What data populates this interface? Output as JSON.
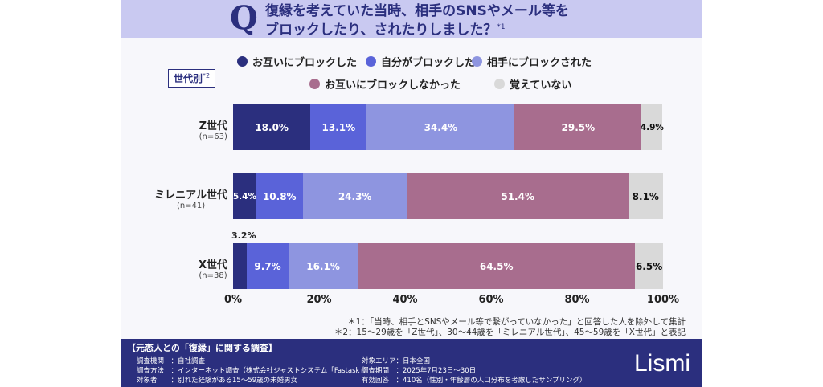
{
  "header": {
    "q": "Q",
    "title_line1": "復縁を考えていた当時、相手のSNSやメール等を",
    "title_line2": "ブロックしたり、されたりしました？",
    "title_note": "*1"
  },
  "group_label": "世代別",
  "group_note": "*2",
  "chart_data": {
    "type": "bar",
    "orientation": "horizontal",
    "stacked": true,
    "categories": [
      {
        "name": "Z世代",
        "n": "(n=63)"
      },
      {
        "name": "ミレニアル世代",
        "n": "(n=41)"
      },
      {
        "name": "X世代",
        "n": "(n=38)"
      }
    ],
    "series": [
      {
        "name": "お互いにブロックした",
        "color": "#2b2f7e",
        "values": [
          18.0,
          5.4,
          3.2
        ],
        "labels": [
          "18.0%",
          "5.4%",
          "3.2%"
        ]
      },
      {
        "name": "自分がブロックした",
        "color": "#5a63d9",
        "values": [
          13.1,
          10.8,
          9.7
        ],
        "labels": [
          "13.1%",
          "10.8%",
          "9.7%"
        ]
      },
      {
        "name": "相手にブロックされた",
        "color": "#8e95e0",
        "values": [
          34.4,
          24.3,
          16.1
        ],
        "labels": [
          "34.4%",
          "24.3%",
          "16.1%"
        ]
      },
      {
        "name": "お互いにブロックしなかった",
        "color": "#a86d8e",
        "values": [
          29.5,
          51.4,
          64.5
        ],
        "labels": [
          "29.5%",
          "51.4%",
          "64.5%"
        ]
      },
      {
        "name": "覚えていない",
        "color": "#d9d9d9",
        "values": [
          4.9,
          8.1,
          6.5
        ],
        "labels": [
          "4.9%",
          "8.1%",
          "6.5%"
        ]
      }
    ],
    "xlim": [
      0,
      100
    ],
    "xticks": [
      "0%",
      "20%",
      "40%",
      "60%",
      "80%",
      "100%"
    ],
    "legend": "top"
  },
  "notes": [
    "＊1：「当時、相手とSNSやメール等で繋がっていなかった」と回答した人を除外して集計",
    "＊2：15〜29歳を「Z世代」、30〜44歳を「ミレニアル世代」、45〜59歳を「X世代」と表記"
  ],
  "footer": {
    "title": "【元恋人との「復縁」に関する調査】",
    "left": [
      "調査機関　：自社調査",
      "調査方法　：インターネット調査（株式会社ジャストシステム「Fastask」）",
      "対象者　　：別れた経験がある15〜59歳の未婚男女"
    ],
    "right": [
      "対象エリア：日本全国",
      "調査期間　：2025年7月23日〜30日",
      "有効回答　：410名（性別・年齢層の人口分布を考慮したサンプリング）"
    ],
    "logo": "Lismi"
  }
}
